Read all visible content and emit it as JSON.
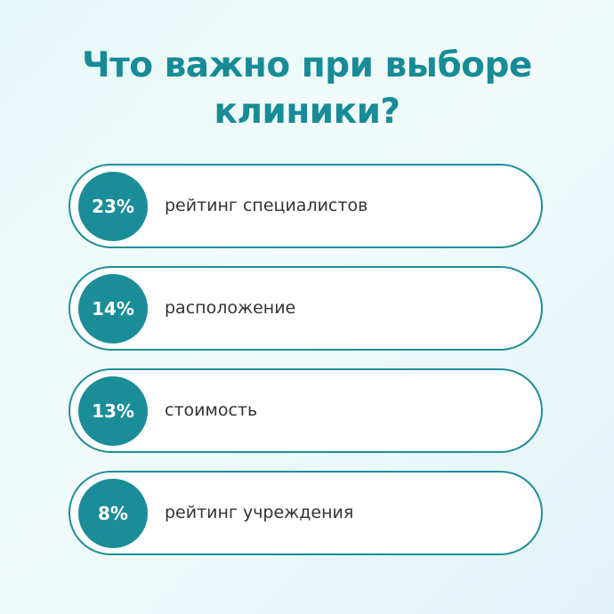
{
  "title": {
    "line1": "Что важно при выборе",
    "line2": "клиники?"
  },
  "items": [
    {
      "percent": "23%",
      "label": "рейтинг специалистов"
    },
    {
      "percent": "14%",
      "label": "расположение"
    },
    {
      "percent": "13%",
      "label": "стоимость"
    },
    {
      "percent": "8%",
      "label": "рейтинг учреждения"
    }
  ],
  "colors": {
    "accent": "#1a8d98",
    "background": "#e9f8f8"
  }
}
